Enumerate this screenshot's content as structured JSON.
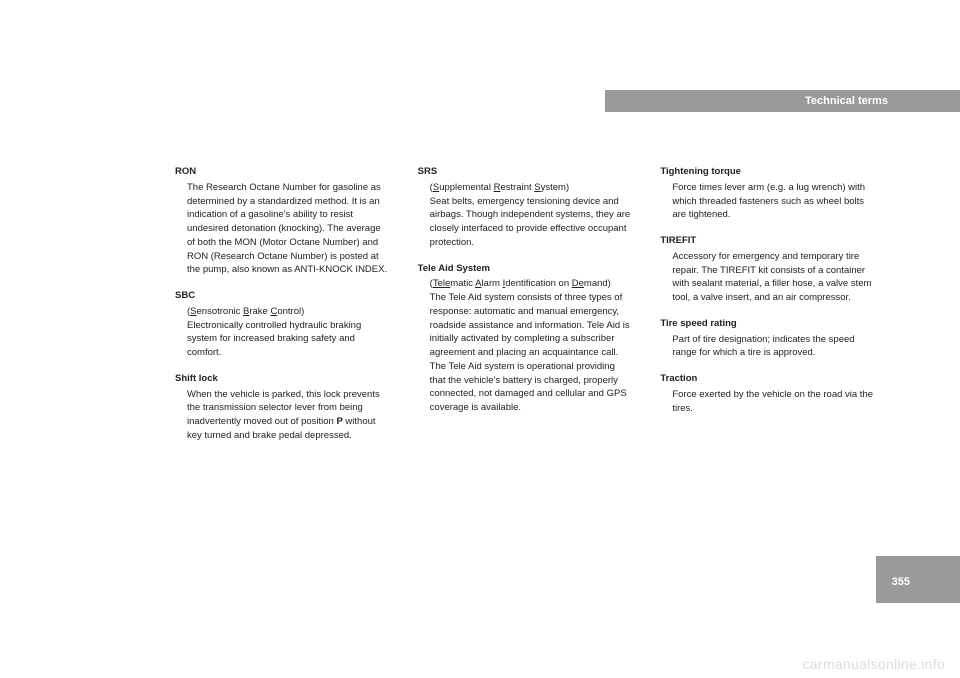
{
  "header": {
    "title": "Technical terms"
  },
  "page_number": "355",
  "watermark": "carmanualsonline.info",
  "col1": {
    "t1": {
      "title": "RON",
      "body": "The Research Octane Number for gasoline as determined by a standardized method. It is an indication of a gasoline's ability to resist undesired detonation (knocking). The average of both the MON (Motor Octane Number) and RON (Research Octane Number) is posted at the pump, also known as ANTI-KNOCK INDEX."
    },
    "t2": {
      "title": "SBC",
      "pre": "(",
      "u1": "S",
      "mid1": "ensotronic ",
      "u2": "B",
      "mid2": "rake ",
      "u3": "C",
      "mid3": "ontrol)",
      "body": "Electronically controlled hydraulic braking system for increased braking safety and comfort."
    },
    "t3": {
      "title": "Shift lock",
      "body_a": "When the vehicle is parked, this lock prevents the transmission selector lever from being inadvertently moved out of position ",
      "bold": "P",
      "body_b": " without key turned and brake pedal depressed."
    }
  },
  "col2": {
    "t1": {
      "title": "SRS",
      "pre": "(",
      "u1": "S",
      "mid1": "upplemental ",
      "u2": "R",
      "mid2": "estraint ",
      "u3": "S",
      "mid3": "ystem)",
      "body": "Seat belts, emergency tensioning device and airbags. Though independent systems, they are closely interfaced to provide effective occupant protection."
    },
    "t2": {
      "title": "Tele Aid System",
      "pre": "(",
      "u1": "Tele",
      "mid1": "matic ",
      "u2": "A",
      "mid2": "larm ",
      "u3": "I",
      "mid3": "dentification on ",
      "u4": "De",
      "mid4": "mand)",
      "body": "The Tele Aid system consists of three types of response: automatic and manual emergency, roadside assistance and information. Tele Aid is initially activated by completing a subscriber agreement and placing an acquaintance call.",
      "body2": "The Tele Aid system is operational providing that the vehicle's battery is charged, properly connected, not damaged and cellular and GPS coverage is available."
    }
  },
  "col3": {
    "t1": {
      "title": "Tightening torque",
      "body": "Force times lever arm (e.g. a lug wrench) with which threaded fasteners such as wheel bolts are tightened."
    },
    "t2": {
      "title": "TIREFIT",
      "body": "Accessory for emergency and temporary tire repair. The TIREFIT kit consists of a container with sealant material, a filler hose, a valve stem tool, a valve insert, and an air compressor."
    },
    "t3": {
      "title": "Tire speed rating",
      "body": "Part of tire designation; indicates the speed range for which a tire is approved."
    },
    "t4": {
      "title": "Traction",
      "body": "Force exerted by the vehicle on the road via the tires."
    }
  }
}
